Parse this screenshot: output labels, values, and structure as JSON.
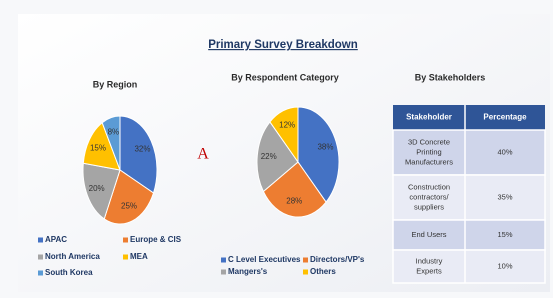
{
  "title": "Primary Survey Breakdown",
  "annotation": "A",
  "chart_data": [
    {
      "type": "pie",
      "title": "By Region",
      "categories": [
        "APAC",
        "Europe & CIS",
        "North America",
        "MEA",
        "South Korea"
      ],
      "values": [
        32,
        25,
        20,
        15,
        8
      ],
      "value_labels": [
        "32%",
        "25%",
        "20%",
        "15%",
        "8%"
      ],
      "colors": [
        "#4472c4",
        "#ed7d31",
        "#a5a5a5",
        "#ffc000",
        "#5b9bd5"
      ]
    },
    {
      "type": "pie",
      "title": "By Respondent Category",
      "categories": [
        "C Level Executives",
        "Directors/VP's",
        "Mangers's",
        "Others"
      ],
      "values": [
        38,
        28,
        22,
        12
      ],
      "value_labels": [
        "38%",
        "28%",
        "22%",
        "12%"
      ],
      "colors": [
        "#4472c4",
        "#ed7d31",
        "#a5a5a5",
        "#ffc000"
      ]
    }
  ],
  "table": {
    "title": "By Stakeholders",
    "header": [
      "Stakeholder",
      "Percentage"
    ],
    "rows": [
      [
        "3D Concrete Printing Manufacturers",
        "40%"
      ],
      [
        "Construction contractors/ suppliers",
        "35%"
      ],
      [
        "End Users",
        "15%"
      ],
      [
        "Industry Experts",
        "10%"
      ]
    ]
  }
}
